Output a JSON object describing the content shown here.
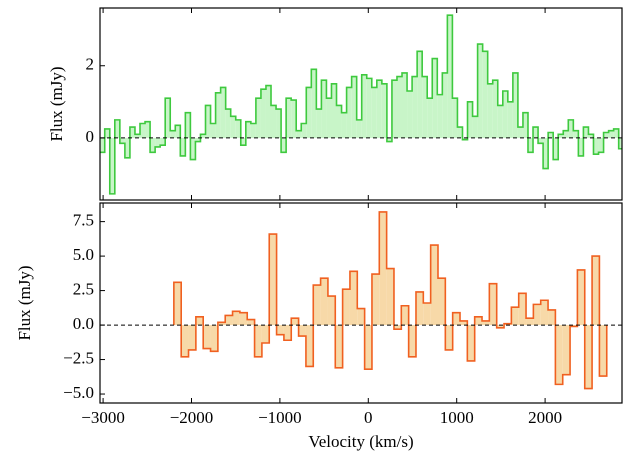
{
  "chart_data": [
    {
      "type": "step",
      "ylabel": "Flux (mJy)",
      "color": "#3ec93e",
      "fill": "#c8f5c8",
      "xlim": [
        -3035,
        2870
      ],
      "ylim": [
        -1.72,
        3.6
      ],
      "xticks": [
        -3000,
        -2000,
        -1000,
        0,
        1000,
        2000
      ],
      "yticks": [
        0,
        2
      ],
      "x": [
        -3010,
        -2953,
        -2896,
        -2839,
        -2782,
        -2725,
        -2668,
        -2611,
        -2554,
        -2497,
        -2440,
        -2383,
        -2326,
        -2269,
        -2212,
        -2155,
        -2098,
        -2041,
        -1984,
        -1927,
        -1870,
        -1813,
        -1756,
        -1699,
        -1642,
        -1585,
        -1528,
        -1471,
        -1414,
        -1357,
        -1300,
        -1243,
        -1186,
        -1129,
        -1072,
        -1015,
        -958,
        -901,
        -844,
        -787,
        -730,
        -673,
        -616,
        -559,
        -502,
        -445,
        -388,
        -331,
        -274,
        -217,
        -160,
        -103,
        -46,
        11,
        68,
        125,
        182,
        239,
        296,
        353,
        410,
        467,
        524,
        581,
        638,
        695,
        752,
        809,
        866,
        923,
        980,
        1037,
        1094,
        1151,
        1208,
        1265,
        1322,
        1379,
        1436,
        1493,
        1550,
        1607,
        1664,
        1721,
        1778,
        1835,
        1892,
        1949,
        2006,
        2063,
        2120,
        2177,
        2234,
        2291,
        2348,
        2405,
        2462,
        2519,
        2576,
        2633,
        2690,
        2747,
        2804,
        2861
      ],
      "values": [
        -0.4,
        0.25,
        -1.55,
        0.5,
        -0.15,
        -0.55,
        0.3,
        0.1,
        0.4,
        0.45,
        -0.4,
        -0.25,
        -0.2,
        1.1,
        0.2,
        0.35,
        -0.5,
        0.7,
        -0.6,
        -0.1,
        0.1,
        0.9,
        0.4,
        1.25,
        1.4,
        0.8,
        0.6,
        0.5,
        -0.2,
        0.45,
        0.4,
        1.1,
        1.35,
        1.45,
        0.9,
        0.8,
        -0.4,
        1.1,
        1.05,
        0.2,
        0.4,
        1.4,
        1.9,
        0.8,
        1.6,
        1.1,
        1.5,
        0.9,
        0.7,
        1.4,
        1.7,
        0.5,
        1.75,
        1.65,
        1.4,
        1.6,
        1.5,
        -0.1,
        1.6,
        1.7,
        1.8,
        1.3,
        1.7,
        2.4,
        1.7,
        1.1,
        2.2,
        1.2,
        1.8,
        3.4,
        1.1,
        0.3,
        -0.05,
        1.0,
        0.6,
        2.6,
        2.4,
        1.5,
        1.6,
        0.9,
        1.3,
        1.0,
        1.8,
        0.3,
        0.7,
        -0.4,
        0.3,
        -0.15,
        -0.85,
        0.15,
        -0.6,
        0.1,
        0.2,
        0.5,
        0.2,
        -0.5,
        0.3,
        0.1,
        -0.45,
        -0.4,
        0.15,
        0.2,
        0.25,
        -0.3
      ]
    },
    {
      "type": "step",
      "xlabel": "Velocity (km/s)",
      "ylabel": "Flux (mJy)",
      "color": "#f06020",
      "fill": "#f7d9a8",
      "xlim": [
        -3035,
        2870
      ],
      "ylim": [
        -5.65,
        8.85
      ],
      "xticks": [
        {
          "value": -3000,
          "label": "−3000"
        },
        {
          "value": -2000,
          "label": "−2000"
        },
        {
          "value": -1000,
          "label": "−1000"
        },
        0,
        1000,
        2000
      ],
      "yticks": [
        {
          "value": -5,
          "label": "−5.0"
        },
        {
          "value": -2.5,
          "label": "−2.5"
        },
        {
          "value": 0,
          "label": "0.0"
        },
        {
          "value": 2.5,
          "label": "2.5"
        },
        {
          "value": 5,
          "label": "5.0"
        },
        {
          "value": 7.5,
          "label": "7.5"
        }
      ],
      "x": [
        -2158,
        -2075,
        -1992,
        -1909,
        -1826,
        -1743,
        -1660,
        -1577,
        -1494,
        -1411,
        -1328,
        -1245,
        -1162,
        -1079,
        -996,
        -913,
        -830,
        -747,
        -664,
        -581,
        -498,
        -415,
        -332,
        -249,
        -166,
        -83,
        0,
        83,
        166,
        249,
        332,
        415,
        498,
        581,
        664,
        747,
        830,
        913,
        996,
        1079,
        1162,
        1245,
        1328,
        1411,
        1494,
        1577,
        1660,
        1743,
        1826,
        1909,
        1992,
        2075,
        2158,
        2241,
        2324,
        2407,
        2490,
        2573,
        2656
      ],
      "values": [
        3.1,
        -2.3,
        -1.8,
        0.6,
        -1.7,
        -1.9,
        0.2,
        0.7,
        1.0,
        0.9,
        0.4,
        -2.3,
        -1.3,
        6.6,
        -0.7,
        -1.1,
        0.5,
        -0.8,
        -3.0,
        2.9,
        3.4,
        2.1,
        -3.1,
        2.6,
        3.9,
        1.2,
        -3.2,
        3.7,
        8.2,
        4.1,
        -0.3,
        1.4,
        -2.3,
        2.4,
        1.6,
        5.8,
        3.4,
        -1.8,
        0.9,
        0.3,
        -2.6,
        0.6,
        0.3,
        3.0,
        -0.2,
        0.1,
        1.3,
        2.3,
        0.5,
        1.5,
        1.8,
        1.1,
        -4.3,
        -3.6,
        -0.1,
        4.0,
        -4.6,
        5.0,
        -3.7
      ]
    }
  ]
}
